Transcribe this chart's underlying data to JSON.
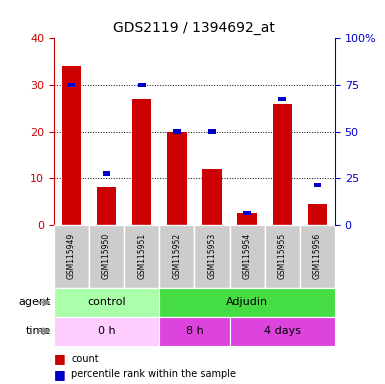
{
  "title": "GDS2119 / 1394692_at",
  "samples": [
    "GSM115949",
    "GSM115950",
    "GSM115951",
    "GSM115952",
    "GSM115953",
    "GSM115954",
    "GSM115955",
    "GSM115956"
  ],
  "count_values": [
    34,
    8,
    27,
    20,
    12,
    2.5,
    26,
    4.5
  ],
  "percentile_values": [
    30,
    11,
    30,
    20,
    20,
    2.5,
    27,
    8.5
  ],
  "bar_color": "#cc0000",
  "percentile_color": "#0000cc",
  "ylim_left": [
    0,
    40
  ],
  "ylim_right": [
    0,
    100
  ],
  "yticks_left": [
    0,
    10,
    20,
    30,
    40
  ],
  "ytick_labels_left": [
    "0",
    "10",
    "20",
    "30",
    "40"
  ],
  "yticks_right": [
    0,
    25,
    50,
    75,
    100
  ],
  "ytick_labels_right": [
    "0",
    "25",
    "50",
    "75",
    "100%"
  ],
  "agent_groups": [
    {
      "label": "control",
      "start": 0,
      "end": 3,
      "color": "#aaffaa"
    },
    {
      "label": "Adjudin",
      "start": 3,
      "end": 8,
      "color": "#44dd44"
    }
  ],
  "time_groups": [
    {
      "label": "0 h",
      "start": 0,
      "end": 3,
      "color": "#ffccff"
    },
    {
      "label": "8 h",
      "start": 3,
      "end": 5,
      "color": "#dd44dd"
    },
    {
      "label": "4 days",
      "start": 5,
      "end": 8,
      "color": "#dd44dd"
    }
  ],
  "bar_width": 0.55,
  "ylabel_left_color": "#cc0000",
  "ylabel_right_color": "#0000cc",
  "sample_bg_color": "#cccccc",
  "sample_border_color": "#ffffff"
}
